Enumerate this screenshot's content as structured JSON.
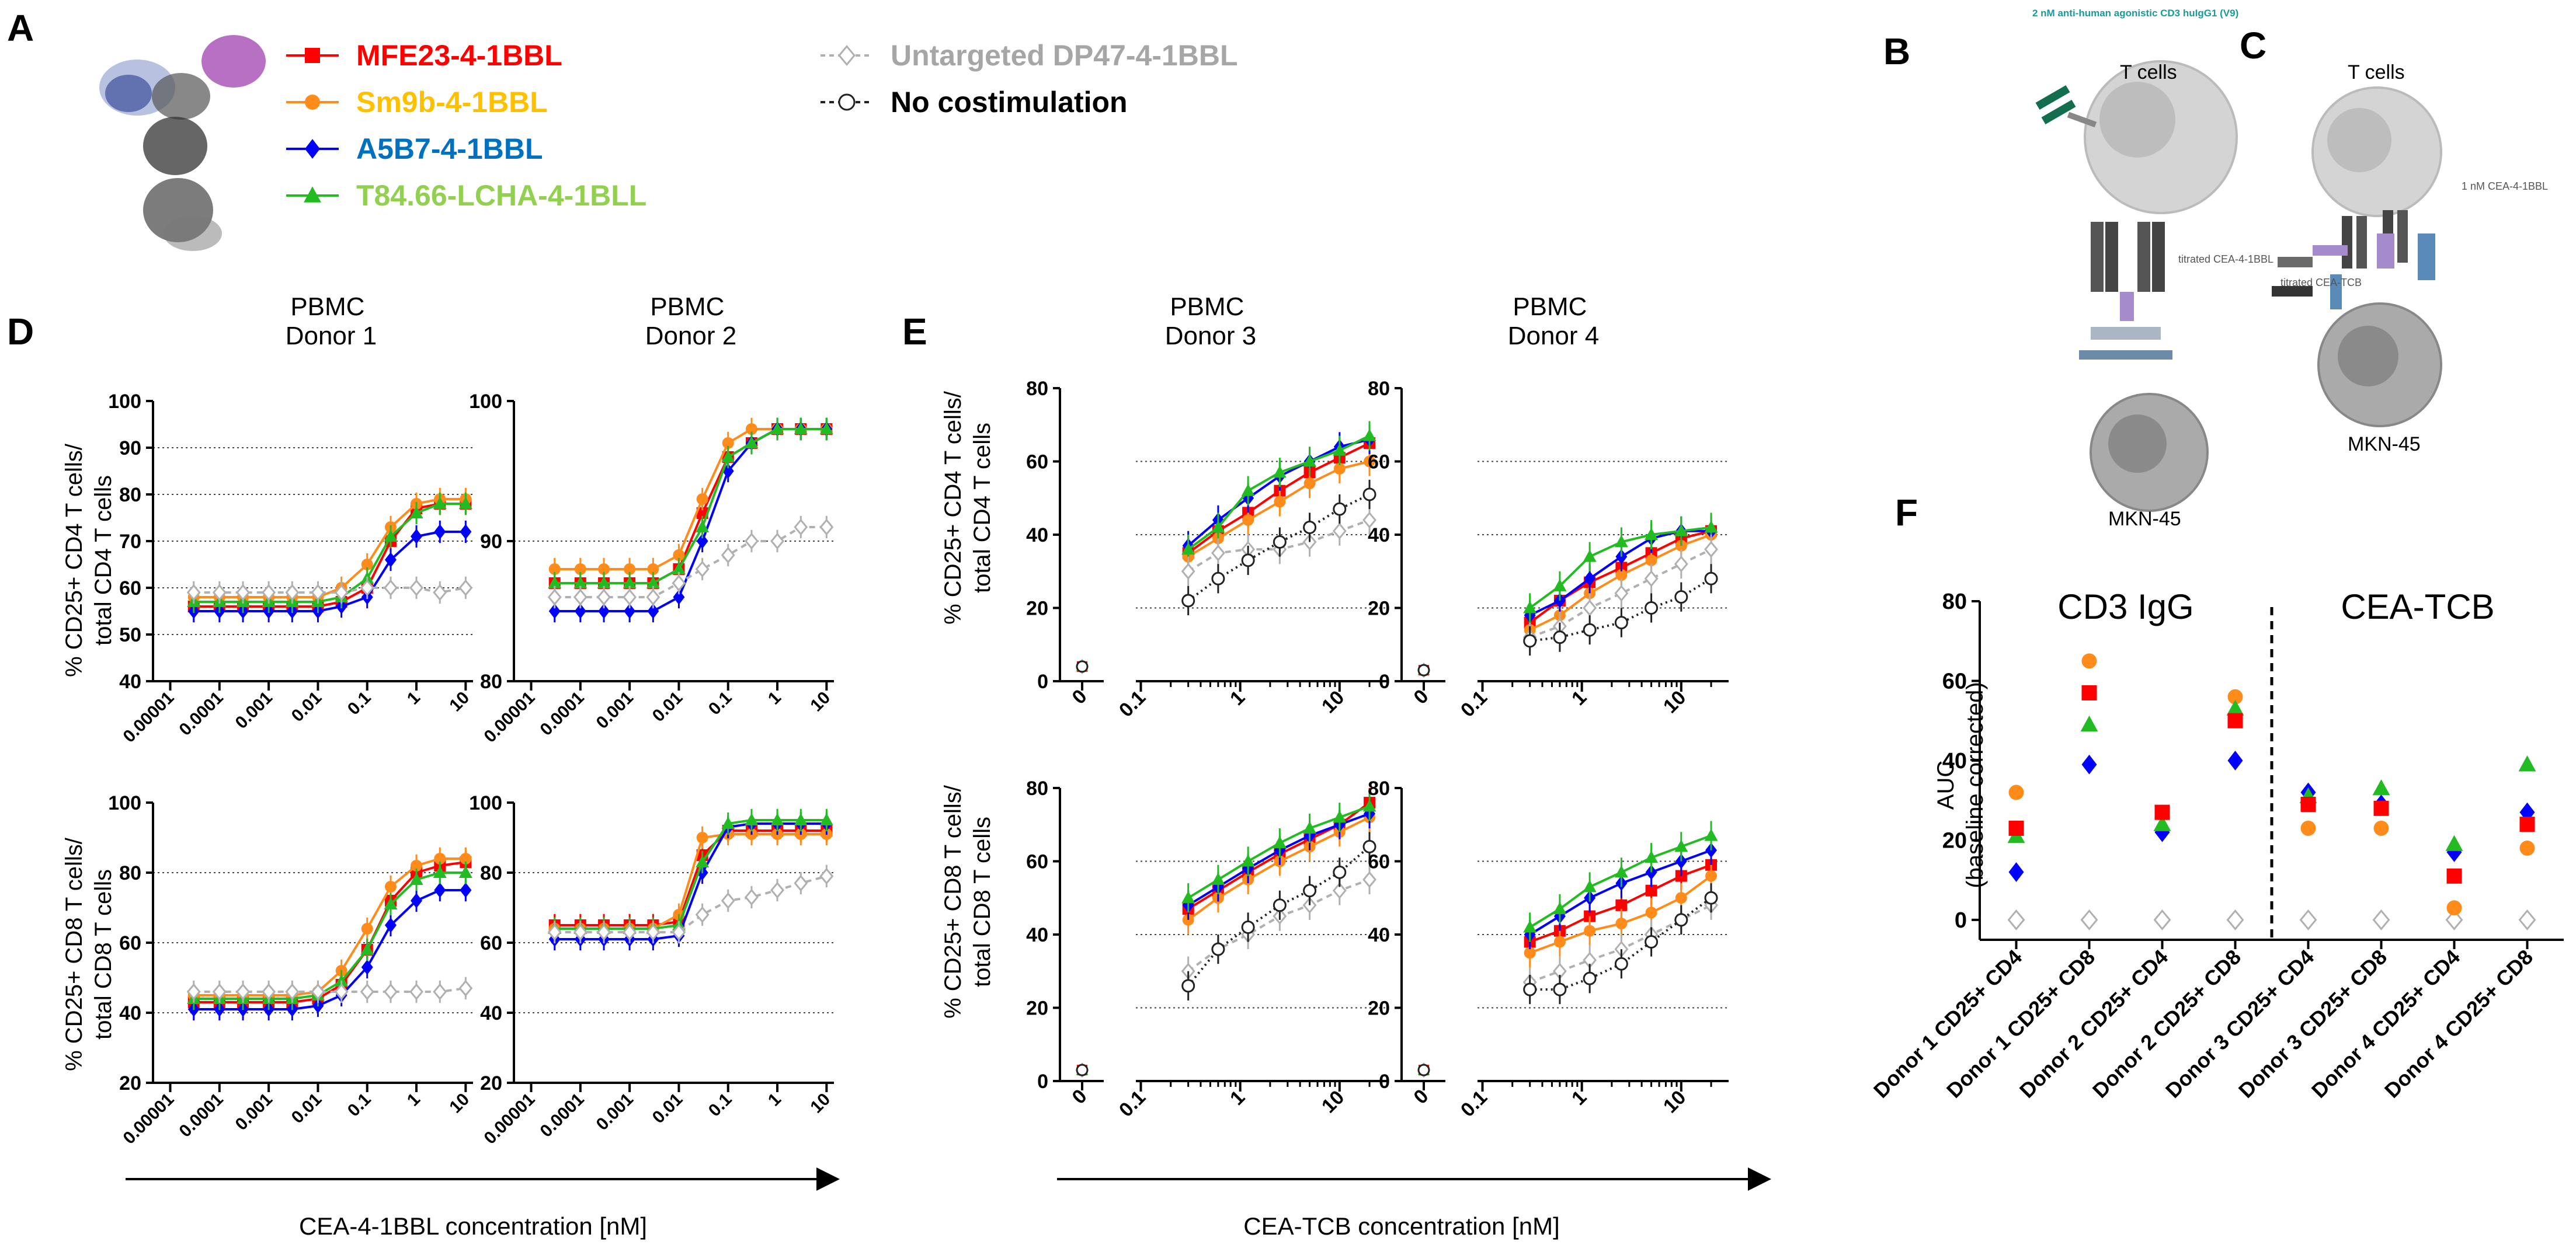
{
  "panels": {
    "A": "A",
    "B": "B",
    "C": "C",
    "D": "D",
    "E": "E",
    "F": "F"
  },
  "legend": {
    "items": [
      {
        "key": "mfe",
        "label": "MFE23-4-1BBL",
        "color": "#ff0000",
        "marker": "square",
        "dashed": false
      },
      {
        "key": "sm9",
        "label": "Sm9b-4-1BBL",
        "color": "#ff8c1a",
        "marker": "circle",
        "dashed": false
      },
      {
        "key": "a5b",
        "label": "A5B7-4-1BBL",
        "color": "#0000ff",
        "marker": "diamond",
        "dashed": false
      },
      {
        "key": "t84",
        "label": "T84.66-LCHA-4-1BLL",
        "color": "#22bb22",
        "marker": "triangle",
        "dashed": false
      },
      {
        "key": "unt",
        "label": "Untargeted DP47-4-1BBL",
        "color": "#b0b0b0",
        "marker": "diamond-open",
        "dashed": true
      },
      {
        "key": "noc",
        "label": "No costimulation",
        "color": "#222222",
        "marker": "circle-open",
        "dashed": true
      }
    ],
    "label_colors": {
      "mfe": "#ff0000",
      "sm9": "#ffc000",
      "a5b": "#0070c0",
      "t84": "#92d050",
      "unt": "#a6a6a6",
      "noc": "#000000"
    }
  },
  "schematic_b": {
    "antibody_text": "2 nM anti-human agonistic CD3 huIgG1 (V9)",
    "tcell": "T cells",
    "titrated": "titrated CEA-4-1BBL",
    "tumor": "MKN-45"
  },
  "schematic_c": {
    "tcell": "T cells",
    "fixed": "1 nM CEA-4-1BBL",
    "titrated": "titrated CEA-TCB",
    "tumor": "MKN-45"
  },
  "d_titles": {
    "donor1": "PBMC\nDonor 1",
    "donor2": "PBMC\nDonor 2"
  },
  "e_titles": {
    "donor3": "PBMC\nDonor 3",
    "donor4": "PBMC\nDonor 4"
  },
  "axis_labels": {
    "d_cd4": "% CD25+ CD4 T cells/\ntotal CD4 T cells",
    "d_cd8": "% CD25+ CD8 T cells/\ntotal CD8 T cells",
    "e_cd4": "% CD25+ CD4 T cells/\ntotal CD4 T cells",
    "e_cd8": "% CD25+ CD8 T cells/\ntotal CD8 T cells",
    "d_x": "CEA-4-1BBL concentration [nM]",
    "e_x": "CEA-TCB concentration [nM]"
  },
  "chart_data": [
    {
      "id": "D1_CD4",
      "type": "line",
      "title": "PBMC Donor 1",
      "ylabel": "% CD25+ CD4 T cells/ total CD4 T cells",
      "xscale": "log",
      "xticks": [
        "0.00001",
        "0.0001",
        "0.001",
        "0.01",
        "0.1",
        "1",
        "10"
      ],
      "ylim": [
        40,
        100
      ],
      "yticks": [
        40,
        50,
        60,
        70,
        80,
        90,
        100
      ],
      "grid": "dotted",
      "x": [
        3e-05,
        0.0001,
        0.0003,
        0.001,
        0.003,
        0.01,
        0.03,
        0.1,
        0.3,
        1,
        3,
        10
      ],
      "series": [
        {
          "name": "MFE23-4-1BBL",
          "values": [
            56,
            56,
            56,
            56,
            56,
            56,
            57,
            60,
            70,
            77,
            78,
            78
          ]
        },
        {
          "name": "Sm9b-4-1BBL",
          "values": [
            58,
            58,
            58,
            58,
            58,
            58,
            60,
            65,
            73,
            78,
            79,
            79
          ]
        },
        {
          "name": "A5B7-4-1BBL",
          "values": [
            55,
            55,
            55,
            55,
            55,
            55,
            56,
            58,
            66,
            71,
            72,
            72
          ]
        },
        {
          "name": "T84.66-LCHA-4-1BLL",
          "values": [
            57,
            57,
            57,
            57,
            57,
            57,
            58,
            62,
            71,
            76,
            78,
            78
          ]
        },
        {
          "name": "Untargeted DP47-4-1BBL",
          "values": [
            59,
            59,
            59,
            59,
            59,
            59,
            59,
            60,
            60,
            60,
            59,
            60
          ]
        }
      ]
    },
    {
      "id": "D2_CD4",
      "type": "line",
      "title": "PBMC Donor 2",
      "xscale": "log",
      "xticks": [
        "0.00001",
        "0.0001",
        "0.001",
        "0.01",
        "0.1",
        "1",
        "10"
      ],
      "ylim": [
        80,
        100
      ],
      "yticks": [
        80,
        90,
        100
      ],
      "grid": "dotted",
      "x": [
        3e-05,
        0.0001,
        0.0003,
        0.001,
        0.003,
        0.01,
        0.03,
        0.1,
        0.3,
        1,
        3,
        10
      ],
      "series": [
        {
          "name": "MFE23-4-1BBL",
          "values": [
            87,
            87,
            87,
            87,
            87,
            88,
            92,
            96,
            97,
            98,
            98,
            98
          ]
        },
        {
          "name": "Sm9b-4-1BBL",
          "values": [
            88,
            88,
            88,
            88,
            88,
            89,
            93,
            97,
            98,
            98,
            98,
            98
          ]
        },
        {
          "name": "A5B7-4-1BBL",
          "values": [
            85,
            85,
            85,
            85,
            85,
            86,
            90,
            95,
            97,
            98,
            98,
            98
          ]
        },
        {
          "name": "T84.66-LCHA-4-1BLL",
          "values": [
            87,
            87,
            87,
            87,
            87,
            88,
            91,
            96,
            97,
            98,
            98,
            98
          ]
        },
        {
          "name": "Untargeted DP47-4-1BBL",
          "values": [
            86,
            86,
            86,
            86,
            86,
            87,
            88,
            89,
            90,
            90,
            91,
            91
          ]
        }
      ]
    },
    {
      "id": "D1_CD8",
      "type": "line",
      "title": "",
      "ylabel": "% CD25+ CD8 T cells/ total CD8 T cells",
      "xscale": "log",
      "xticks": [
        "0.00001",
        "0.0001",
        "0.001",
        "0.01",
        "0.1",
        "1",
        "10"
      ],
      "ylim": [
        20,
        100
      ],
      "yticks": [
        20,
        40,
        60,
        80,
        100
      ],
      "grid": "dotted",
      "x": [
        3e-05,
        0.0001,
        0.0003,
        0.001,
        0.003,
        0.01,
        0.03,
        0.1,
        0.3,
        1,
        3,
        10
      ],
      "series": [
        {
          "name": "MFE23-4-1BBL",
          "values": [
            43,
            43,
            43,
            43,
            43,
            44,
            48,
            58,
            72,
            80,
            82,
            83
          ]
        },
        {
          "name": "Sm9b-4-1BBL",
          "values": [
            45,
            45,
            45,
            45,
            45,
            46,
            52,
            64,
            76,
            82,
            84,
            84
          ]
        },
        {
          "name": "A5B7-4-1BBL",
          "values": [
            41,
            41,
            41,
            41,
            41,
            42,
            45,
            53,
            65,
            72,
            75,
            75
          ]
        },
        {
          "name": "T84.66-LCHA-4-1BLL",
          "values": [
            44,
            44,
            44,
            44,
            44,
            45,
            49,
            58,
            71,
            78,
            80,
            80
          ]
        },
        {
          "name": "Untargeted DP47-4-1BBL",
          "values": [
            46,
            46,
            46,
            46,
            46,
            46,
            46,
            46,
            46,
            46,
            46,
            47
          ]
        }
      ]
    },
    {
      "id": "D2_CD8",
      "type": "line",
      "title": "",
      "xscale": "log",
      "xticks": [
        "0.00001",
        "0.0001",
        "0.001",
        "0.01",
        "0.1",
        "1",
        "10"
      ],
      "ylim": [
        20,
        100
      ],
      "yticks": [
        20,
        40,
        60,
        80,
        100
      ],
      "grid": "dotted",
      "x": [
        3e-05,
        0.0001,
        0.0003,
        0.001,
        0.003,
        0.01,
        0.03,
        0.1,
        0.3,
        1,
        3,
        10
      ],
      "series": [
        {
          "name": "MFE23-4-1BBL",
          "values": [
            65,
            65,
            65,
            65,
            65,
            66,
            85,
            92,
            92,
            92,
            92,
            92
          ]
        },
        {
          "name": "Sm9b-4-1BBL",
          "values": [
            64,
            64,
            64,
            64,
            64,
            68,
            90,
            91,
            91,
            91,
            91,
            91
          ]
        },
        {
          "name": "A5B7-4-1BBL",
          "values": [
            61,
            61,
            61,
            61,
            61,
            62,
            80,
            93,
            94,
            94,
            94,
            94
          ]
        },
        {
          "name": "T84.66-LCHA-4-1BLL",
          "values": [
            64,
            64,
            64,
            64,
            64,
            65,
            83,
            94,
            95,
            95,
            95,
            95
          ]
        },
        {
          "name": "Untargeted DP47-4-1BBL",
          "values": [
            63,
            63,
            63,
            63,
            63,
            63,
            68,
            72,
            73,
            75,
            77,
            79
          ]
        }
      ]
    },
    {
      "id": "E3_CD4",
      "type": "line",
      "title": "PBMC Donor 3",
      "ylabel": "% CD25+ CD4 T cells/ total CD4 T cells",
      "xscale": "log",
      "xticks": [
        "0",
        "0.1",
        "1",
        "10"
      ],
      "ylim": [
        0,
        80
      ],
      "yticks": [
        0,
        20,
        40,
        60,
        80
      ],
      "grid": "dotted",
      "zero_value": {
        "MFE23-4-1BBL": 4,
        "Sm9b-4-1BBL": 4,
        "A5B7-4-1BBL": 4,
        "T84.66-LCHA-4-1BLL": 4,
        "Untargeted DP47-4-1BBL": 4,
        "No costimulation": 4
      },
      "x": [
        0.3,
        0.6,
        1.2,
        2.5,
        5,
        10,
        20
      ],
      "series": [
        {
          "name": "MFE23-4-1BBL",
          "values": [
            35,
            41,
            46,
            52,
            57,
            61,
            65
          ]
        },
        {
          "name": "Sm9b-4-1BBL",
          "values": [
            34,
            39,
            44,
            49,
            54,
            58,
            60
          ]
        },
        {
          "name": "A5B7-4-1BBL",
          "values": [
            37,
            44,
            50,
            56,
            60,
            64,
            66
          ]
        },
        {
          "name": "T84.66-LCHA-4-1BLL",
          "values": [
            36,
            42,
            52,
            57,
            60,
            63,
            67
          ]
        },
        {
          "name": "Untargeted DP47-4-1BBL",
          "values": [
            30,
            35,
            36,
            36,
            38,
            41,
            44
          ]
        },
        {
          "name": "No costimulation",
          "values": [
            22,
            28,
            33,
            38,
            42,
            47,
            51
          ]
        }
      ]
    },
    {
      "id": "E4_CD4",
      "type": "line",
      "title": "PBMC Donor 4",
      "xscale": "log",
      "xticks": [
        "0",
        "0.1",
        "1",
        "10"
      ],
      "ylim": [
        0,
        80
      ],
      "yticks": [
        0,
        20,
        40,
        60,
        80
      ],
      "grid": "dotted",
      "x": [
        0.3,
        0.6,
        1.2,
        2.5,
        5,
        10,
        20
      ],
      "series": [
        {
          "name": "MFE23-4-1BBL",
          "values": [
            16,
            22,
            27,
            31,
            35,
            39,
            41
          ]
        },
        {
          "name": "Sm9b-4-1BBL",
          "values": [
            14,
            18,
            24,
            29,
            33,
            37,
            40
          ]
        },
        {
          "name": "A5B7-4-1BBL",
          "values": [
            18,
            22,
            28,
            34,
            39,
            41,
            41
          ]
        },
        {
          "name": "T84.66-LCHA-4-1BLL",
          "values": [
            20,
            26,
            34,
            38,
            40,
            41,
            42
          ]
        },
        {
          "name": "Untargeted DP47-4-1BBL",
          "values": [
            12,
            15,
            20,
            24,
            28,
            32,
            36
          ]
        },
        {
          "name": "No costimulation",
          "values": [
            11,
            12,
            14,
            16,
            20,
            23,
            28
          ]
        }
      ]
    },
    {
      "id": "E3_CD8",
      "type": "line",
      "title": "",
      "ylabel": "% CD25+ CD8 T cells/ total CD8 T cells",
      "xscale": "log",
      "xticks": [
        "0",
        "0.1",
        "1",
        "10"
      ],
      "ylim": [
        0,
        80
      ],
      "yticks": [
        0,
        20,
        40,
        60,
        80
      ],
      "grid": "dotted",
      "x": [
        0.3,
        0.6,
        1.2,
        2.5,
        5,
        10,
        20
      ],
      "series": [
        {
          "name": "MFE23-4-1BBL",
          "values": [
            47,
            52,
            57,
            62,
            66,
            70,
            76
          ]
        },
        {
          "name": "Sm9b-4-1BBL",
          "values": [
            44,
            50,
            55,
            60,
            64,
            68,
            72
          ]
        },
        {
          "name": "A5B7-4-1BBL",
          "values": [
            48,
            53,
            58,
            63,
            67,
            70,
            73
          ]
        },
        {
          "name": "T84.66-LCHA-4-1BLL",
          "values": [
            50,
            55,
            60,
            65,
            69,
            72,
            75
          ]
        },
        {
          "name": "Untargeted DP47-4-1BBL",
          "values": [
            30,
            36,
            40,
            45,
            48,
            52,
            55
          ]
        },
        {
          "name": "No costimulation",
          "values": [
            26,
            36,
            42,
            48,
            52,
            57,
            64
          ]
        }
      ]
    },
    {
      "id": "E4_CD8",
      "type": "line",
      "title": "",
      "xscale": "log",
      "xticks": [
        "0",
        "0.1",
        "1",
        "10"
      ],
      "ylim": [
        0,
        80
      ],
      "yticks": [
        0,
        20,
        40,
        60,
        80
      ],
      "grid": "dotted",
      "x": [
        0.3,
        0.6,
        1.2,
        2.5,
        5,
        10,
        20
      ],
      "series": [
        {
          "name": "MFE23-4-1BBL",
          "values": [
            38,
            41,
            45,
            48,
            52,
            56,
            59
          ]
        },
        {
          "name": "Sm9b-4-1BBL",
          "values": [
            35,
            38,
            41,
            43,
            46,
            50,
            56
          ]
        },
        {
          "name": "A5B7-4-1BBL",
          "values": [
            40,
            45,
            50,
            54,
            57,
            60,
            63
          ]
        },
        {
          "name": "T84.66-LCHA-4-1BLL",
          "values": [
            42,
            47,
            53,
            57,
            61,
            64,
            67
          ]
        },
        {
          "name": "Untargeted DP47-4-1BBL",
          "values": [
            27,
            30,
            33,
            36,
            40,
            44,
            48
          ]
        },
        {
          "name": "No costimulation",
          "values": [
            25,
            25,
            28,
            32,
            38,
            44,
            50
          ]
        }
      ]
    },
    {
      "id": "F_AUC",
      "type": "scatter",
      "title": "",
      "ylabel": "AUC\n(baseline corrected)",
      "ylim": [
        -5,
        80
      ],
      "yticks": [
        0,
        20,
        40,
        60,
        80
      ],
      "group_labels": [
        "CD3 IgG",
        "CEA-TCB"
      ],
      "categories": [
        "Donor 1 CD25+ CD4",
        "Donor 1 CD25+ CD8",
        "Donor 2 CD25+ CD4",
        "Donor 2 CD25+ CD8",
        "Donor 3 CD25+ CD4",
        "Donor 3 CD25+ CD8",
        "Donor 4 CD25+ CD4",
        "Donor 4 CD25+ CD8"
      ],
      "series": [
        {
          "name": "MFE23-4-1BBL",
          "values": [
            23,
            57,
            27,
            50,
            29,
            28,
            11,
            24
          ]
        },
        {
          "name": "Sm9b-4-1BBL",
          "values": [
            32,
            65,
            27,
            56,
            23,
            23,
            3,
            18
          ]
        },
        {
          "name": "A5B7-4-1BBL",
          "values": [
            12,
            39,
            22,
            40,
            32,
            29,
            17,
            27
          ]
        },
        {
          "name": "T84.66-LCHA-4-1BLL",
          "values": [
            21,
            49,
            24,
            53,
            31,
            33,
            19,
            39
          ]
        },
        {
          "name": "Untargeted DP47-4-1BBL",
          "values": [
            0,
            0,
            0,
            0,
            0,
            0,
            0,
            0
          ]
        }
      ]
    }
  ]
}
